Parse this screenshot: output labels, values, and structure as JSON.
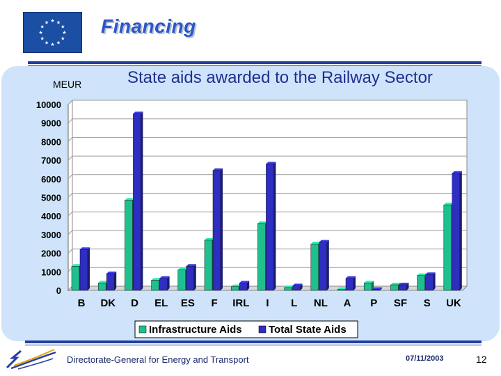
{
  "header": {
    "title": "Financing"
  },
  "footer": {
    "department": "Directorate-General for Energy and Transport",
    "date": "07/11/2003",
    "page_number": "12"
  },
  "chart_data": {
    "type": "bar",
    "title": "State aids awarded to the Railway Sector",
    "ylabel": "MEUR",
    "xlabel": "",
    "ylim": [
      0,
      10000
    ],
    "yticks": [
      0,
      1000,
      2000,
      3000,
      4000,
      5000,
      6000,
      7000,
      8000,
      9000,
      10000
    ],
    "categories": [
      "B",
      "DK",
      "D",
      "EL",
      "ES",
      "F",
      "IRL",
      "I",
      "L",
      "NL",
      "A",
      "P",
      "SF",
      "S",
      "UK"
    ],
    "series": [
      {
        "name": "Infrastructure Aids",
        "color": "#1fbf8f",
        "values": [
          1300,
          400,
          4850,
          550,
          1100,
          2700,
          200,
          3600,
          150,
          2500,
          50,
          400,
          300,
          800,
          4600
        ]
      },
      {
        "name": "Total State Aids",
        "color": "#2e2ec2",
        "values": [
          2200,
          900,
          9500,
          650,
          1300,
          6450,
          400,
          6800,
          250,
          2600,
          650,
          50,
          300,
          850,
          6300
        ]
      }
    ],
    "legend_position": "bottom",
    "grid": true
  }
}
